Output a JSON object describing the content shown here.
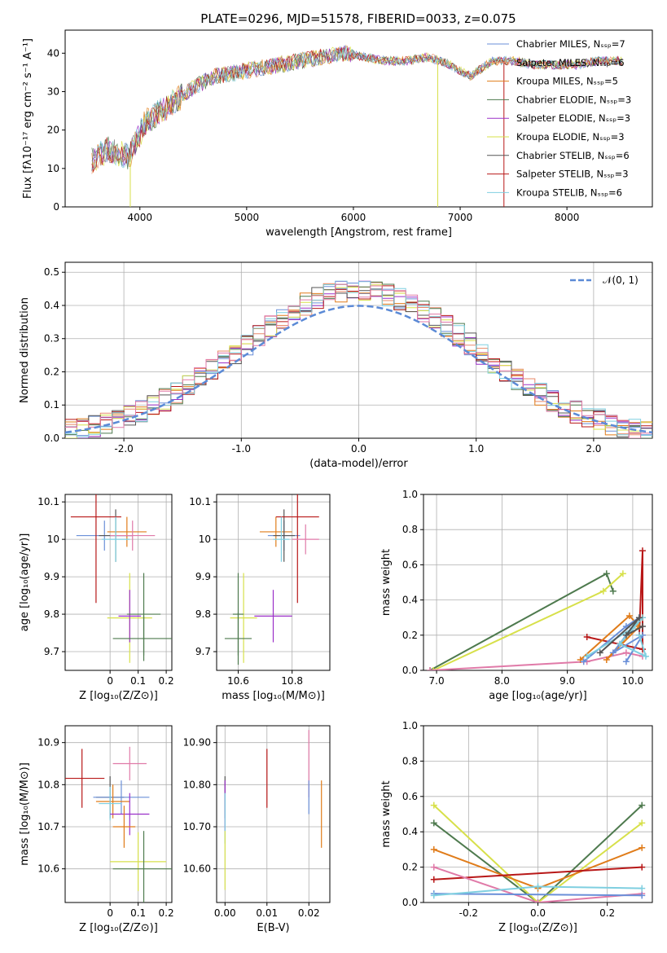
{
  "figure_title": "PLATE=0296, MJD=51578, FIBERID=0033, z=0.075",
  "colors": {
    "chabrier_miles": "#6a8fd8",
    "salpeter_miles": "#e8896a",
    "kroupa_miles": "#e07c1a",
    "chabrier_elodie": "#4e7a4e",
    "salpeter_elodie": "#9b30c8",
    "kroupa_elodie": "#d7e04a",
    "chabrier_stelib": "#555555",
    "salpeter_stelib": "#b81818",
    "kroupa_stelib": "#7fcfe0",
    "pink": "#e07aa8",
    "gauss": "#5b8ad6"
  },
  "chart_data": [
    {
      "id": "spectrum",
      "type": "line",
      "title": "PLATE=0296, MJD=51578, FIBERID=0033, z=0.075",
      "xlabel": "wavelength [Angstrom, rest frame]",
      "ylabel": "Flux [fλ10⁻¹⁷ erg cm⁻² s⁻¹ A⁻¹]",
      "xlim": [
        3300,
        8800
      ],
      "ylim": [
        0,
        46
      ],
      "xticks": [
        4000,
        5000,
        6000,
        7000,
        8000
      ],
      "yticks": [
        0,
        10,
        20,
        30,
        40
      ],
      "spectrum_x": [
        3550,
        3700,
        3900,
        4050,
        4200,
        4350,
        4500,
        4700,
        4900,
        5100,
        5300,
        5500,
        5700,
        5900,
        6100,
        6300,
        6500,
        6700,
        6900,
        7100,
        7300,
        7500,
        7700,
        7900,
        8100,
        8300,
        8500
      ],
      "spectrum_y": [
        12,
        15,
        13,
        22,
        25,
        28,
        31,
        34,
        35,
        36,
        37,
        38,
        39,
        40,
        39,
        38,
        38,
        39,
        37,
        34,
        38,
        38,
        37,
        37,
        37,
        38,
        38
      ],
      "legend": [
        "Chabrier MILES, Nₛₛₚ=7",
        "Salpeter MILES, Nₛₛₚ=6",
        "Kroupa MILES, Nₛₛₚ=5",
        "Chabrier ELODIE, Nₛₛₚ=3",
        "Salpeter ELODIE, Nₛₛₚ=3",
        "Kroupa ELODIE, Nₛₛₚ=3",
        "Chabrier STELIB, Nₛₛₚ=6",
        "Salpeter STELIB, Nₛₛₚ=3",
        "Kroupa STELIB, Nₛₛₚ=6"
      ],
      "legend_placement": "top-right"
    },
    {
      "id": "residuals",
      "type": "histogram",
      "xlabel": "(data-model)/error",
      "ylabel": "Normed distribution",
      "xlim": [
        -2.5,
        2.5
      ],
      "ylim": [
        0,
        0.53
      ],
      "xticks": [
        -2,
        -1,
        0,
        1,
        2
      ],
      "yticks": [
        0.0,
        0.1,
        0.2,
        0.3,
        0.4,
        0.5
      ],
      "legend": [
        "𝒩(0, 1)"
      ],
      "legend_placement": "top-right",
      "grid": true
    },
    {
      "id": "age_vs_Z",
      "type": "errorbar",
      "xlabel": "Z [log₁₀(Z/Z⊙)]",
      "ylabel": "age  [log₁₀(age/yr)]",
      "xlim": [
        -0.16,
        0.22
      ],
      "ylim": [
        9.65,
        10.12
      ],
      "xticks": [
        0.0,
        0.1,
        0.2
      ],
      "yticks": [
        9.7,
        9.8,
        9.9,
        10.0,
        10.1
      ],
      "points": [
        {
          "x": -0.02,
          "y": 10.01,
          "xerr": 0.1,
          "yerr": 0.04,
          "c": "chabrier_miles"
        },
        {
          "x": 0.06,
          "y": 10.02,
          "xerr": 0.07,
          "yerr": 0.04,
          "c": "kroupa_miles"
        },
        {
          "x": 0.02,
          "y": 10.01,
          "xerr": 0.06,
          "yerr": 0.07,
          "c": "chabrier_stelib"
        },
        {
          "x": -0.05,
          "y": 10.06,
          "xerr": 0.09,
          "yerr": 0.23,
          "c": "salpeter_stelib"
        },
        {
          "x": 0.08,
          "y": 10.01,
          "xerr": 0.08,
          "yerr": 0.04,
          "c": "pink"
        },
        {
          "x": 0.02,
          "y": 10.0,
          "xerr": 0.05,
          "yerr": 0.06,
          "c": "kroupa_stelib"
        },
        {
          "x": 0.07,
          "y": 9.79,
          "xerr": 0.08,
          "yerr": 0.12,
          "c": "kroupa_elodie"
        },
        {
          "x": 0.07,
          "y": 9.795,
          "xerr": 0.04,
          "yerr": 0.07,
          "c": "salpeter_elodie"
        },
        {
          "x": 0.12,
          "y": 9.735,
          "xerr": 0.11,
          "yerr": 0.06,
          "c": "chabrier_elodie"
        },
        {
          "x": 0.12,
          "y": 9.8,
          "xerr": 0.06,
          "yerr": 0.11,
          "c": "chabrier_elodie"
        }
      ]
    },
    {
      "id": "age_vs_mass",
      "type": "errorbar",
      "xlabel": "mass [log₁₀(M/M⊙)]",
      "ylabel": "",
      "xlim": [
        10.52,
        10.94
      ],
      "ylim": [
        9.65,
        10.12
      ],
      "xticks": [
        10.6,
        10.8
      ],
      "yticks": [
        9.7,
        9.8,
        9.9,
        10.0,
        10.1
      ],
      "points": [
        {
          "x": 10.77,
          "y": 10.01,
          "xerr": 0.06,
          "yerr": 0.04,
          "c": "chabrier_miles"
        },
        {
          "x": 10.74,
          "y": 10.02,
          "xerr": 0.06,
          "yerr": 0.04,
          "c": "kroupa_miles"
        },
        {
          "x": 10.77,
          "y": 10.01,
          "xerr": 0.04,
          "yerr": 0.07,
          "c": "chabrier_stelib"
        },
        {
          "x": 10.82,
          "y": 10.06,
          "xerr": 0.08,
          "yerr": 0.23,
          "c": "salpeter_stelib"
        },
        {
          "x": 10.85,
          "y": 10.0,
          "xerr": 0.05,
          "yerr": 0.04,
          "c": "pink"
        },
        {
          "x": 10.76,
          "y": 10.0,
          "xerr": 0.03,
          "yerr": 0.06,
          "c": "kroupa_stelib"
        },
        {
          "x": 10.62,
          "y": 9.79,
          "xerr": 0.05,
          "yerr": 0.12,
          "c": "kroupa_elodie"
        },
        {
          "x": 10.73,
          "y": 9.795,
          "xerr": 0.07,
          "yerr": 0.07,
          "c": "salpeter_elodie"
        },
        {
          "x": 10.6,
          "y": 9.735,
          "xerr": 0.05,
          "yerr": 0.07,
          "c": "chabrier_elodie"
        },
        {
          "x": 10.6,
          "y": 9.8,
          "xerr": 0.02,
          "yerr": 0.11,
          "c": "chabrier_elodie"
        }
      ]
    },
    {
      "id": "mass_weight_vs_age",
      "type": "line",
      "xlabel": "age  [log₁₀(age/yr)]",
      "ylabel": "mass weight",
      "xlim": [
        6.8,
        10.3
      ],
      "ylim": [
        0,
        1.0
      ],
      "xticks": [
        7,
        8,
        9,
        10
      ],
      "yticks": [
        0.0,
        0.2,
        0.4,
        0.6,
        0.8,
        1.0
      ],
      "series": [
        {
          "c": "chabrier_elodie",
          "x": [
            6.9,
            9.6,
            9.7
          ],
          "y": [
            0.0,
            0.55,
            0.45
          ]
        },
        {
          "c": "kroupa_elodie",
          "x": [
            6.95,
            9.55,
            9.85
          ],
          "y": [
            0.0,
            0.45,
            0.55
          ]
        },
        {
          "c": "pink",
          "x": [
            6.9,
            9.3,
            9.9,
            10.15
          ],
          "y": [
            0.0,
            0.05,
            0.1,
            0.08
          ]
        },
        {
          "c": "salpeter_stelib",
          "x": [
            9.3,
            10.15,
            10.15,
            10.1
          ],
          "y": [
            0.19,
            0.12,
            0.68,
            0.2
          ]
        },
        {
          "c": "kroupa_miles",
          "x": [
            9.2,
            9.95,
            10.1,
            9.6,
            10.15
          ],
          "y": [
            0.06,
            0.31,
            0.25,
            0.06,
            0.3
          ]
        },
        {
          "c": "chabrier_miles",
          "x": [
            9.25,
            9.9,
            10.1,
            9.7,
            10.15,
            9.9
          ],
          "y": [
            0.05,
            0.25,
            0.3,
            0.1,
            0.2,
            0.05
          ]
        },
        {
          "c": "kroupa_stelib",
          "x": [
            9.3,
            10.0,
            10.15,
            9.8,
            10.2,
            10.1
          ],
          "y": [
            0.08,
            0.24,
            0.3,
            0.15,
            0.08,
            0.2
          ]
        },
        {
          "c": "chabrier_stelib",
          "x": [
            9.5,
            10.1,
            9.9,
            10.15
          ],
          "y": [
            0.1,
            0.3,
            0.2,
            0.25
          ]
        }
      ]
    },
    {
      "id": "mass_vs_Z",
      "type": "errorbar",
      "xlabel": "Z [log₁₀(Z/Z⊙)]",
      "ylabel": "mass [log₁₀(M/M⊙)]",
      "xlim": [
        -0.16,
        0.22
      ],
      "ylim": [
        10.52,
        10.94
      ],
      "xticks": [
        0.0,
        0.1,
        0.2
      ],
      "yticks": [
        10.6,
        10.7,
        10.8,
        10.9
      ],
      "points": [
        {
          "x": -0.1,
          "y": 10.815,
          "xerr": 0.08,
          "yerr": 0.07,
          "c": "salpeter_stelib"
        },
        {
          "x": 0.07,
          "y": 10.85,
          "xerr": 0.06,
          "yerr": 0.04,
          "c": "pink"
        },
        {
          "x": 0.0,
          "y": 10.77,
          "xerr": 0.05,
          "yerr": 0.05,
          "c": "chabrier_stelib"
        },
        {
          "x": 0.04,
          "y": 10.77,
          "xerr": 0.1,
          "yerr": 0.04,
          "c": "chabrier_miles"
        },
        {
          "x": 0.01,
          "y": 10.76,
          "xerr": 0.06,
          "yerr": 0.04,
          "c": "kroupa_miles"
        },
        {
          "x": 0.0,
          "y": 10.755,
          "xerr": 0.04,
          "yerr": 0.04,
          "c": "kroupa_stelib"
        },
        {
          "x": 0.07,
          "y": 10.73,
          "xerr": 0.07,
          "yerr": 0.05,
          "c": "salpeter_elodie"
        },
        {
          "x": 0.05,
          "y": 10.7,
          "xerr": 0.04,
          "yerr": 0.05,
          "c": "kroupa_miles"
        },
        {
          "x": 0.1,
          "y": 10.617,
          "xerr": 0.1,
          "yerr": 0.07,
          "c": "kroupa_elodie"
        },
        {
          "x": 0.12,
          "y": 10.6,
          "xerr": 0.11,
          "yerr": 0.09,
          "c": "chabrier_elodie"
        }
      ]
    },
    {
      "id": "mass_vs_ebv",
      "type": "errorbar",
      "xlabel": "E(B-V)",
      "ylabel": "",
      "xlim": [
        -0.002,
        0.025
      ],
      "ylim": [
        10.52,
        10.94
      ],
      "xticks": [
        0.0,
        0.01,
        0.02
      ],
      "yticks": [
        10.6,
        10.7,
        10.8,
        10.9
      ],
      "points": [
        {
          "x": 0.0,
          "y": 10.77,
          "xerr": 0.0,
          "yerr": 0.05,
          "c": "chabrier_stelib"
        },
        {
          "x": 0.0,
          "y": 10.75,
          "xerr": 0.0,
          "yerr": 0.06,
          "c": "salpeter_elodie"
        },
        {
          "x": 0.0,
          "y": 10.72,
          "xerr": 0.0,
          "yerr": 0.06,
          "c": "kroupa_stelib"
        },
        {
          "x": 0.0,
          "y": 10.62,
          "xerr": 0.0,
          "yerr": 0.07,
          "c": "kroupa_elodie"
        },
        {
          "x": 0.01,
          "y": 10.815,
          "xerr": 0.0,
          "yerr": 0.07,
          "c": "salpeter_stelib"
        },
        {
          "x": 0.02,
          "y": 10.85,
          "xerr": 0.0,
          "yerr": 0.08,
          "c": "pink"
        },
        {
          "x": 0.02,
          "y": 10.77,
          "xerr": 0.0,
          "yerr": 0.04,
          "c": "chabrier_miles"
        },
        {
          "x": 0.023,
          "y": 10.73,
          "xerr": 0.0,
          "yerr": 0.08,
          "c": "kroupa_miles"
        }
      ]
    },
    {
      "id": "mass_weight_vs_Z",
      "type": "line",
      "xlabel": "Z [log₁₀(Z/Z⊙)]",
      "ylabel": "mass weight",
      "xlim": [
        -0.33,
        0.33
      ],
      "ylim": [
        0,
        1.0
      ],
      "xticks": [
        -0.2,
        0.0,
        0.2
      ],
      "yticks": [
        0.0,
        0.2,
        0.4,
        0.6,
        0.8,
        1.0
      ],
      "series": [
        {
          "c": "chabrier_elodie",
          "x": [
            -0.3,
            0.0,
            0.3
          ],
          "y": [
            0.45,
            0.0,
            0.55
          ]
        },
        {
          "c": "kroupa_elodie",
          "x": [
            -0.3,
            0.0,
            0.3
          ],
          "y": [
            0.55,
            0.0,
            0.45
          ]
        },
        {
          "c": "kroupa_miles",
          "x": [
            -0.3,
            0.0,
            0.3
          ],
          "y": [
            0.3,
            0.08,
            0.31
          ]
        },
        {
          "c": "salpeter_stelib",
          "x": [
            -0.3,
            0.3
          ],
          "y": [
            0.13,
            0.2
          ]
        },
        {
          "c": "pink",
          "x": [
            -0.3,
            0.0,
            0.3
          ],
          "y": [
            0.2,
            0.0,
            0.05
          ]
        },
        {
          "c": "chabrier_miles",
          "x": [
            -0.3,
            0.3
          ],
          "y": [
            0.05,
            0.04
          ]
        },
        {
          "c": "kroupa_stelib",
          "x": [
            -0.3,
            0.0,
            0.3
          ],
          "y": [
            0.04,
            0.09,
            0.08
          ]
        }
      ]
    }
  ]
}
